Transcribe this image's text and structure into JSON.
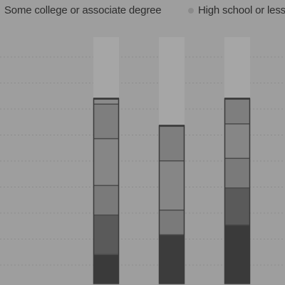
{
  "chart_data": {
    "type": "bar",
    "stacked": true,
    "categories": [
      "",
      "",
      ""
    ],
    "legend": [
      {
        "name": "Some college or associate degree",
        "color": "#7c7c7c"
      },
      {
        "name": "High school or less",
        "color": "#4a4a4a"
      }
    ],
    "segments": [
      [
        {
          "value": 12,
          "color": "#3a3a3a"
        },
        {
          "value": 16,
          "color": "#5a5a5a"
        },
        {
          "value": 12,
          "color": "#7a7a7a"
        },
        {
          "value": 19,
          "color": "#868686"
        },
        {
          "value": 14,
          "color": "#7e7e7e"
        },
        {
          "value": 2,
          "color": "#8a8a8a"
        }
      ],
      [
        {
          "value": 20,
          "color": "#3c3c3c"
        },
        {
          "value": 10,
          "color": "#7a7a7a"
        },
        {
          "value": 20,
          "color": "#868686"
        },
        {
          "value": 14,
          "color": "#7e7e7e"
        }
      ],
      [
        {
          "value": 24,
          "color": "#3a3a3a"
        },
        {
          "value": 15,
          "color": "#5a5a5a"
        },
        {
          "value": 12,
          "color": "#7a7a7a"
        },
        {
          "value": 14,
          "color": "#868686"
        },
        {
          "value": 10,
          "color": "#7e7e7e"
        }
      ]
    ],
    "totals": [
      75,
      64,
      75
    ],
    "ylim": [
      0,
      100
    ],
    "grid": true,
    "legend_position": "top"
  }
}
